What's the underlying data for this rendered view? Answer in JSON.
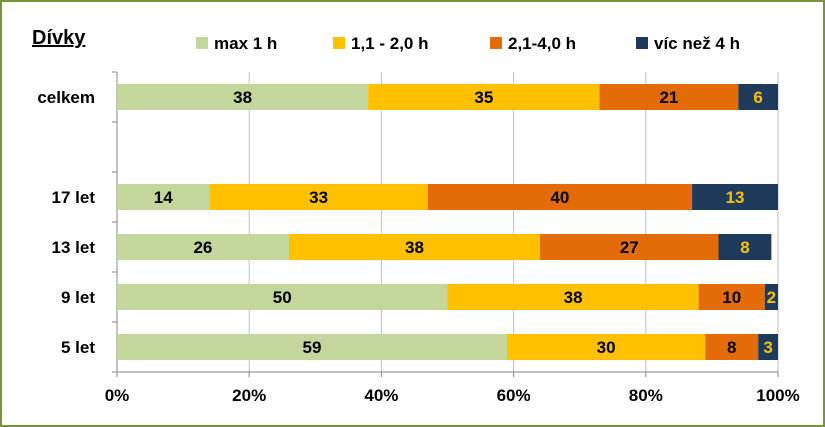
{
  "chart_data": {
    "type": "bar",
    "orientation": "horizontal",
    "stacked": "percent",
    "title": "Dívky",
    "categories": [
      "celkem",
      "",
      "17 let",
      "13 let",
      "9 let",
      "5 let"
    ],
    "series": [
      {
        "name": "max 1 h",
        "color": "#c3d69b",
        "label_color": "#000000",
        "values": [
          38,
          null,
          14,
          26,
          50,
          59
        ]
      },
      {
        "name": "1,1 - 2,0 h",
        "color": "#ffc000",
        "label_color": "#000000",
        "values": [
          35,
          null,
          33,
          38,
          38,
          30
        ]
      },
      {
        "name": "2,1-4,0 h",
        "color": "#e36c09",
        "label_color": "#000000",
        "values": [
          21,
          null,
          40,
          27,
          10,
          8
        ]
      },
      {
        "name": "víc než 4 h",
        "color": "#1f3b5c",
        "label_color": "#ffc000",
        "values": [
          6,
          null,
          13,
          8,
          2,
          3
        ]
      }
    ],
    "x_ticks": [
      "0%",
      "20%",
      "40%",
      "60%",
      "80%",
      "100%"
    ],
    "xlim": [
      0,
      100
    ],
    "grid": true,
    "legend": "top",
    "frame_color": "#76923c"
  }
}
